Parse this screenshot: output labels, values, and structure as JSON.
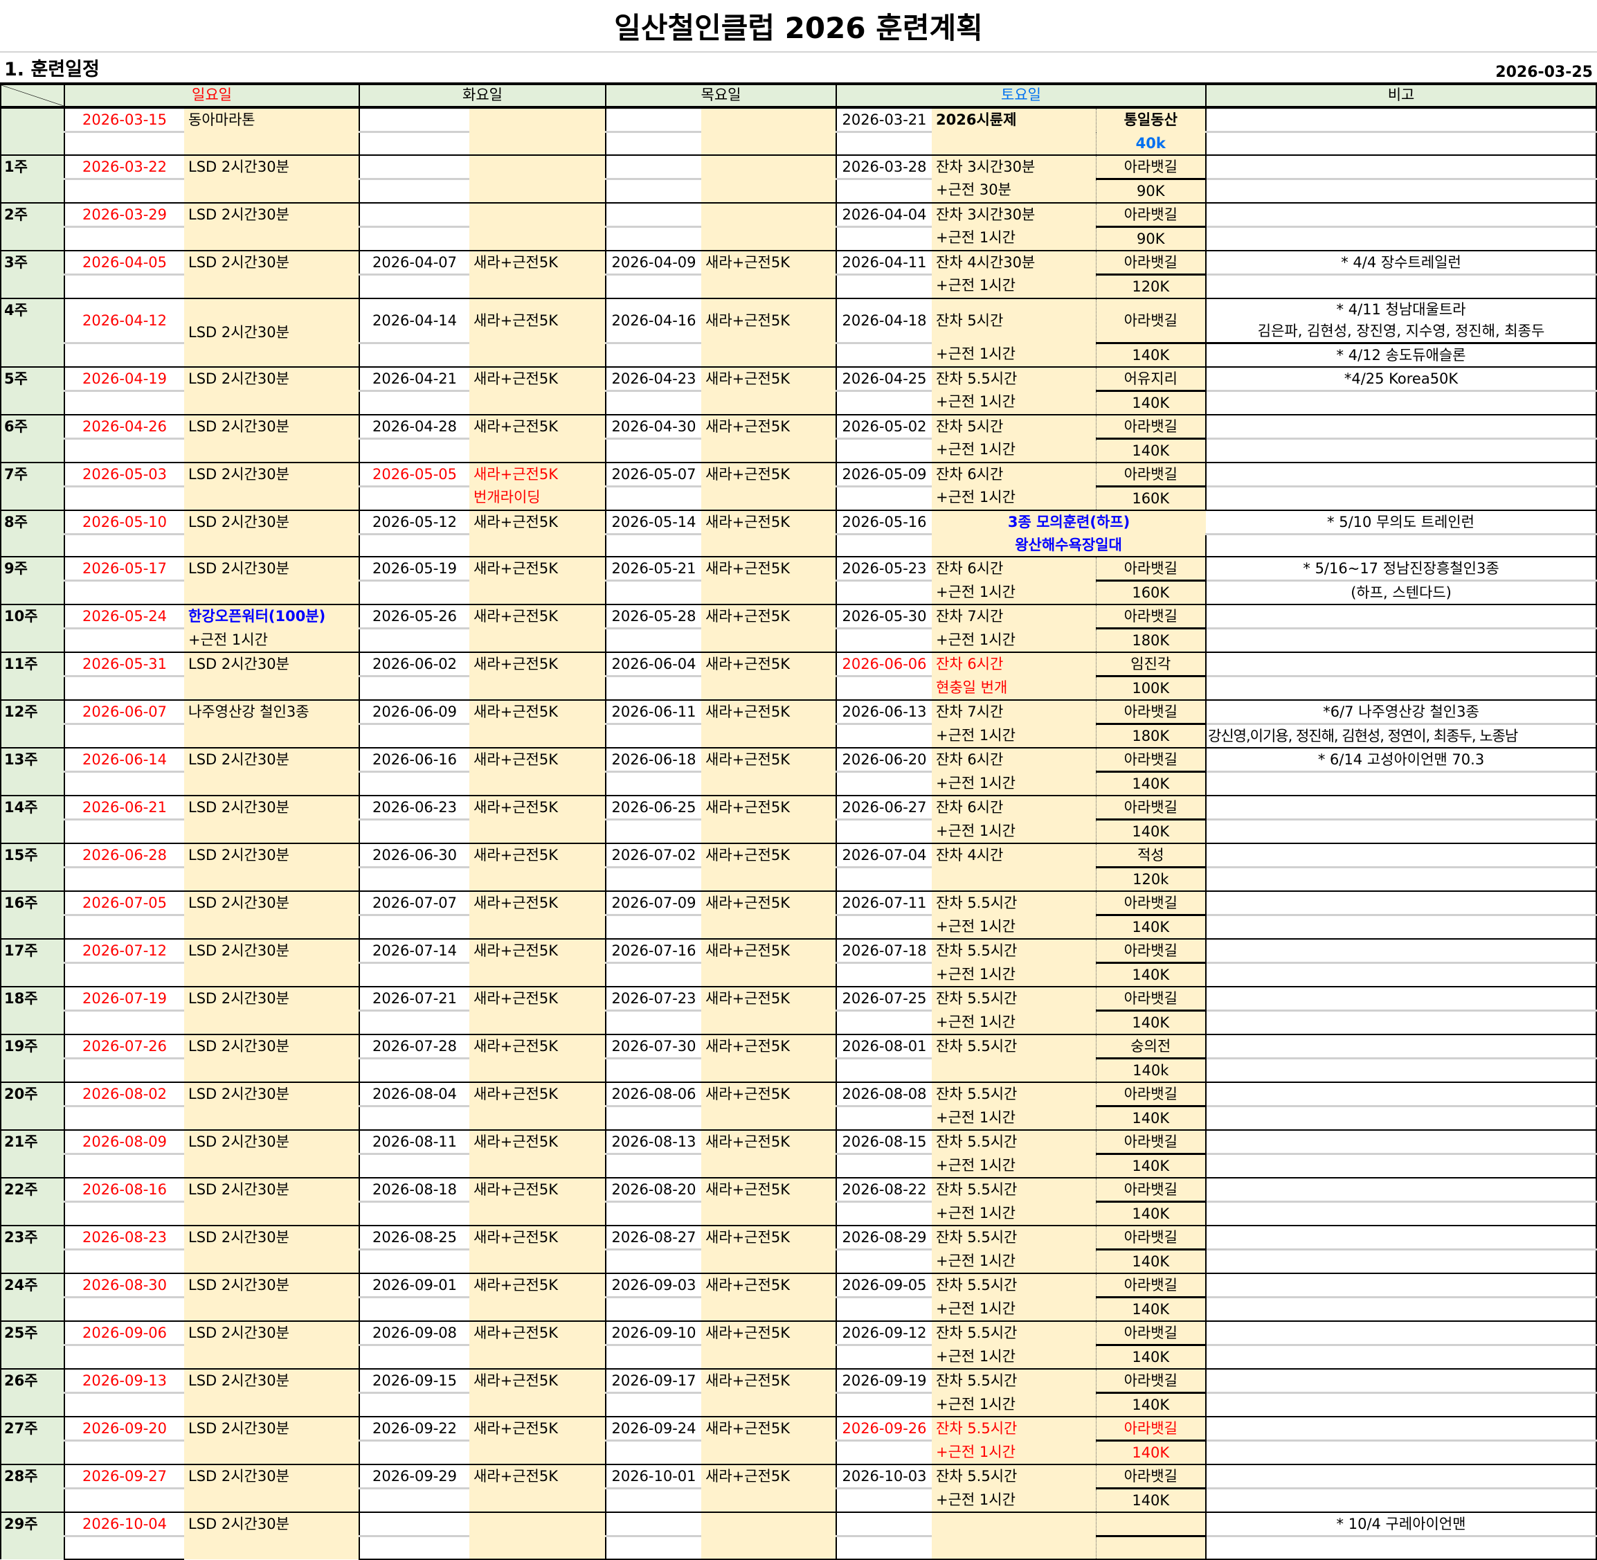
{
  "title": "일산철인클럽 2026 훈련계획",
  "section": "1. 훈련일정",
  "doc_date": "2026-03-25",
  "headers": {
    "sun": "일요일",
    "tue": "화요일",
    "thu": "목요일",
    "sat": "토요일",
    "remark": "비고"
  },
  "colors": {
    "sunday": "#FF0000",
    "saturday": "#0070F0",
    "highlight_blue": "#0000FF",
    "week_bg": "#E2EFDA",
    "activity_bg": "#FFF2CC"
  },
  "rows": [
    {
      "w": "",
      "sun": [
        "2026-03-15",
        "동아마라톤",
        ""
      ],
      "tue": [
        "",
        "",
        ""
      ],
      "thu": [
        "",
        "",
        ""
      ],
      "sat": [
        "2026-03-21",
        "2026시륜제",
        "",
        "통일동산",
        "40k"
      ],
      "rm": [
        "",
        ""
      ],
      "style": "first"
    },
    {
      "w": "1주",
      "sun": [
        "2026-03-22",
        "LSD 2시간30분",
        ""
      ],
      "tue": [
        "",
        "",
        ""
      ],
      "thu": [
        "",
        "",
        ""
      ],
      "sat": [
        "2026-03-28",
        "잔차 3시간30분",
        "+근전 30분",
        "아라뱃길",
        "90K"
      ],
      "rm": [
        "",
        ""
      ]
    },
    {
      "w": "2주",
      "sun": [
        "2026-03-29",
        "LSD 2시간30분",
        ""
      ],
      "tue": [
        "",
        "",
        ""
      ],
      "thu": [
        "",
        "",
        ""
      ],
      "sat": [
        "2026-04-04",
        "잔차 3시간30분",
        "+근전 1시간",
        "아라뱃길",
        "90K"
      ],
      "rm": [
        "",
        ""
      ]
    },
    {
      "w": "3주",
      "sun": [
        "2026-04-05",
        "LSD 2시간30분",
        ""
      ],
      "tue": [
        "2026-04-07",
        "새라+근전5K",
        ""
      ],
      "thu": [
        "2026-04-09",
        "새라+근전5K",
        ""
      ],
      "sat": [
        "2026-04-11",
        "잔차 4시간30분",
        "+근전 1시간",
        "아라뱃길",
        "120K"
      ],
      "rm": [
        "* 4/4 장수트레일런",
        ""
      ]
    },
    {
      "w": "4주",
      "sun": [
        "2026-04-12",
        "LSD 2시간30분",
        ""
      ],
      "tue": [
        "2026-04-14",
        "새라+근전5K",
        ""
      ],
      "thu": [
        "2026-04-16",
        "새라+근전5K",
        ""
      ],
      "sat": [
        "2026-04-18",
        "잔차 5시간",
        "+근전 1시간",
        "아라뱃길",
        "140K"
      ],
      "rm": [
        "* 4/11 청남대울트라",
        "* 4/12 송도듀애슬론"
      ],
      "rm2": "김은파, 김현성, 장진영, 지수영, 정진해, 최종두",
      "style": "tall"
    },
    {
      "w": "5주",
      "sun": [
        "2026-04-19",
        "LSD 2시간30분",
        ""
      ],
      "tue": [
        "2026-04-21",
        "새라+근전5K",
        ""
      ],
      "thu": [
        "2026-04-23",
        "새라+근전5K",
        ""
      ],
      "sat": [
        "2026-04-25",
        "잔차 5.5시간",
        "+근전 1시간",
        "어유지리",
        "140K"
      ],
      "rm": [
        "*4/25 Korea50K",
        ""
      ]
    },
    {
      "w": "6주",
      "sun": [
        "2026-04-26",
        "LSD 2시간30분",
        ""
      ],
      "tue": [
        "2026-04-28",
        "새라+근전5K",
        ""
      ],
      "thu": [
        "2026-04-30",
        "새라+근전5K",
        ""
      ],
      "sat": [
        "2026-05-02",
        "잔차 5시간",
        "+근전 1시간",
        "아라뱃길",
        "140K"
      ],
      "rm": [
        "",
        ""
      ]
    },
    {
      "w": "7주",
      "sun": [
        "2026-05-03",
        "LSD 2시간30분",
        ""
      ],
      "tue": [
        "2026-05-05",
        "새라+근전5K",
        "번개라이딩"
      ],
      "thu": [
        "2026-05-07",
        "새라+근전5K",
        ""
      ],
      "sat": [
        "2026-05-09",
        "잔차 6시간",
        "+근전 1시간",
        "아라뱃길",
        "160K"
      ],
      "rm": [
        "",
        ""
      ],
      "style": "tue_red"
    },
    {
      "w": "8주",
      "sun": [
        "2026-05-10",
        "LSD 2시간30분",
        ""
      ],
      "tue": [
        "2026-05-12",
        "새라+근전5K",
        ""
      ],
      "thu": [
        "2026-05-14",
        "새라+근전5K",
        ""
      ],
      "sat": [
        "2026-05-16",
        "3종 모의훈련(하프)",
        "왕산해수욕장일대",
        "",
        ""
      ],
      "rm": [
        "* 5/10 무의도 트레인런",
        ""
      ],
      "style": "sat_span_blue"
    },
    {
      "w": "9주",
      "sun": [
        "2026-05-17",
        "LSD 2시간30분",
        ""
      ],
      "tue": [
        "2026-05-19",
        "새라+근전5K",
        ""
      ],
      "thu": [
        "2026-05-21",
        "새라+근전5K",
        ""
      ],
      "sat": [
        "2026-05-23",
        "잔차 6시간",
        "+근전 1시간",
        "아라뱃길",
        "160K"
      ],
      "rm": [
        "* 5/16~17 정남진장흥철인3종",
        "(하프, 스텐다드)"
      ]
    },
    {
      "w": "10주",
      "sun": [
        "2026-05-24",
        "한강오픈워터(100분)",
        "+근전 1시간"
      ],
      "tue": [
        "2026-05-26",
        "새라+근전5K",
        ""
      ],
      "thu": [
        "2026-05-28",
        "새라+근전5K",
        ""
      ],
      "sat": [
        "2026-05-30",
        "잔차 7시간",
        "+근전 1시간",
        "아라뱃길",
        "180K"
      ],
      "rm": [
        "",
        ""
      ],
      "style": "sun_act_blue"
    },
    {
      "w": "11주",
      "sun": [
        "2026-05-31",
        "LSD 2시간30분",
        ""
      ],
      "tue": [
        "2026-06-02",
        "새라+근전5K",
        ""
      ],
      "thu": [
        "2026-06-04",
        "새라+근전5K",
        ""
      ],
      "sat": [
        "2026-06-06",
        "잔차 6시간",
        "현충일 번개",
        "임진각",
        "100K"
      ],
      "rm": [
        "",
        ""
      ],
      "style": "sat_red"
    },
    {
      "w": "12주",
      "sun": [
        "2026-06-07",
        "나주영산강 철인3종",
        ""
      ],
      "tue": [
        "2026-06-09",
        "새라+근전5K",
        ""
      ],
      "thu": [
        "2026-06-11",
        "새라+근전5K",
        ""
      ],
      "sat": [
        "2026-06-13",
        "잔차 7시간",
        "+근전 1시간",
        "아라뱃길",
        "180K"
      ],
      "rm": [
        "*6/7 나주영산강 철인3종",
        "강신영,이기용, 정진해, 김현성, 정연이, 최종두, 노종남"
      ]
    },
    {
      "w": "13주",
      "sun": [
        "2026-06-14",
        "LSD 2시간30분",
        ""
      ],
      "tue": [
        "2026-06-16",
        "새라+근전5K",
        ""
      ],
      "thu": [
        "2026-06-18",
        "새라+근전5K",
        ""
      ],
      "sat": [
        "2026-06-20",
        "잔차 6시간",
        "+근전 1시간",
        "아라뱃길",
        "140K"
      ],
      "rm": [
        "* 6/14 고성아이언맨 70.3",
        ""
      ]
    },
    {
      "w": "14주",
      "sun": [
        "2026-06-21",
        "LSD 2시간30분",
        ""
      ],
      "tue": [
        "2026-06-23",
        "새라+근전5K",
        ""
      ],
      "thu": [
        "2026-06-25",
        "새라+근전5K",
        ""
      ],
      "sat": [
        "2026-06-27",
        "잔차 6시간",
        "+근전 1시간",
        "아라뱃길",
        "140K"
      ],
      "rm": [
        "",
        ""
      ]
    },
    {
      "w": "15주",
      "sun": [
        "2026-06-28",
        "LSD 2시간30분",
        ""
      ],
      "tue": [
        "2026-06-30",
        "새라+근전5K",
        ""
      ],
      "thu": [
        "2026-07-02",
        "새라+근전5K",
        ""
      ],
      "sat": [
        "2026-07-04",
        "잔차 4시간",
        "",
        "적성",
        "120k"
      ],
      "rm": [
        "",
        ""
      ]
    },
    {
      "w": "16주",
      "sun": [
        "2026-07-05",
        "LSD 2시간30분",
        ""
      ],
      "tue": [
        "2026-07-07",
        "새라+근전5K",
        ""
      ],
      "thu": [
        "2026-07-09",
        "새라+근전5K",
        ""
      ],
      "sat": [
        "2026-07-11",
        "잔차 5.5시간",
        "+근전 1시간",
        "아라뱃길",
        "140K"
      ],
      "rm": [
        "",
        ""
      ]
    },
    {
      "w": "17주",
      "sun": [
        "2026-07-12",
        "LSD 2시간30분",
        ""
      ],
      "tue": [
        "2026-07-14",
        "새라+근전5K",
        ""
      ],
      "thu": [
        "2026-07-16",
        "새라+근전5K",
        ""
      ],
      "sat": [
        "2026-07-18",
        "잔차 5.5시간",
        "+근전 1시간",
        "아라뱃길",
        "140K"
      ],
      "rm": [
        "",
        ""
      ]
    },
    {
      "w": "18주",
      "sun": [
        "2026-07-19",
        "LSD 2시간30분",
        ""
      ],
      "tue": [
        "2026-07-21",
        "새라+근전5K",
        ""
      ],
      "thu": [
        "2026-07-23",
        "새라+근전5K",
        ""
      ],
      "sat": [
        "2026-07-25",
        "잔차 5.5시간",
        "+근전 1시간",
        "아라뱃길",
        "140K"
      ],
      "rm": [
        "",
        ""
      ]
    },
    {
      "w": "19주",
      "sun": [
        "2026-07-26",
        "LSD 2시간30분",
        ""
      ],
      "tue": [
        "2026-07-28",
        "새라+근전5K",
        ""
      ],
      "thu": [
        "2026-07-30",
        "새라+근전5K",
        ""
      ],
      "sat": [
        "2026-08-01",
        "잔차 5.5시간",
        "",
        "숭의전",
        "140k"
      ],
      "rm": [
        "",
        ""
      ]
    },
    {
      "w": "20주",
      "sun": [
        "2026-08-02",
        "LSD 2시간30분",
        ""
      ],
      "tue": [
        "2026-08-04",
        "새라+근전5K",
        ""
      ],
      "thu": [
        "2026-08-06",
        "새라+근전5K",
        ""
      ],
      "sat": [
        "2026-08-08",
        "잔차 5.5시간",
        "+근전 1시간",
        "아라뱃길",
        "140K"
      ],
      "rm": [
        "",
        ""
      ]
    },
    {
      "w": "21주",
      "sun": [
        "2026-08-09",
        "LSD 2시간30분",
        ""
      ],
      "tue": [
        "2026-08-11",
        "새라+근전5K",
        ""
      ],
      "thu": [
        "2026-08-13",
        "새라+근전5K",
        ""
      ],
      "sat": [
        "2026-08-15",
        "잔차 5.5시간",
        "+근전 1시간",
        "아라뱃길",
        "140K"
      ],
      "rm": [
        "",
        ""
      ]
    },
    {
      "w": "22주",
      "sun": [
        "2026-08-16",
        "LSD 2시간30분",
        ""
      ],
      "tue": [
        "2026-08-18",
        "새라+근전5K",
        ""
      ],
      "thu": [
        "2026-08-20",
        "새라+근전5K",
        ""
      ],
      "sat": [
        "2026-08-22",
        "잔차 5.5시간",
        "+근전 1시간",
        "아라뱃길",
        "140K"
      ],
      "rm": [
        "",
        ""
      ]
    },
    {
      "w": "23주",
      "sun": [
        "2026-08-23",
        "LSD 2시간30분",
        ""
      ],
      "tue": [
        "2026-08-25",
        "새라+근전5K",
        ""
      ],
      "thu": [
        "2026-08-27",
        "새라+근전5K",
        ""
      ],
      "sat": [
        "2026-08-29",
        "잔차 5.5시간",
        "+근전 1시간",
        "아라뱃길",
        "140K"
      ],
      "rm": [
        "",
        ""
      ]
    },
    {
      "w": "24주",
      "sun": [
        "2026-08-30",
        "LSD 2시간30분",
        ""
      ],
      "tue": [
        "2026-09-01",
        "새라+근전5K",
        ""
      ],
      "thu": [
        "2026-09-03",
        "새라+근전5K",
        ""
      ],
      "sat": [
        "2026-09-05",
        "잔차 5.5시간",
        "+근전 1시간",
        "아라뱃길",
        "140K"
      ],
      "rm": [
        "",
        ""
      ]
    },
    {
      "w": "25주",
      "sun": [
        "2026-09-06",
        "LSD 2시간30분",
        ""
      ],
      "tue": [
        "2026-09-08",
        "새라+근전5K",
        ""
      ],
      "thu": [
        "2026-09-10",
        "새라+근전5K",
        ""
      ],
      "sat": [
        "2026-09-12",
        "잔차 5.5시간",
        "+근전 1시간",
        "아라뱃길",
        "140K"
      ],
      "rm": [
        "",
        ""
      ]
    },
    {
      "w": "26주",
      "sun": [
        "2026-09-13",
        "LSD 2시간30분",
        ""
      ],
      "tue": [
        "2026-09-15",
        "새라+근전5K",
        ""
      ],
      "thu": [
        "2026-09-17",
        "새라+근전5K",
        ""
      ],
      "sat": [
        "2026-09-19",
        "잔차 5.5시간",
        "+근전 1시간",
        "아라뱃길",
        "140K"
      ],
      "rm": [
        "",
        ""
      ]
    },
    {
      "w": "27주",
      "sun": [
        "2026-09-20",
        "LSD 2시간30분",
        ""
      ],
      "tue": [
        "2026-09-22",
        "새라+근전5K",
        ""
      ],
      "thu": [
        "2026-09-24",
        "새라+근전5K",
        ""
      ],
      "sat": [
        "2026-09-26",
        "잔차 5.5시간",
        "+근전 1시간",
        "아라뱃길",
        "140K"
      ],
      "rm": [
        "",
        ""
      ],
      "style": "sat_all_red"
    },
    {
      "w": "28주",
      "sun": [
        "2026-09-27",
        "LSD 2시간30분",
        ""
      ],
      "tue": [
        "2026-09-29",
        "새라+근전5K",
        ""
      ],
      "thu": [
        "2026-10-01",
        "새라+근전5K",
        ""
      ],
      "sat": [
        "2026-10-03",
        "잔차 5.5시간",
        "+근전 1시간",
        "아라뱃길",
        "140K"
      ],
      "rm": [
        "",
        ""
      ]
    },
    {
      "w": "29주",
      "sun": [
        "2026-10-04",
        "LSD 2시간30분",
        ""
      ],
      "tue": [
        "",
        "",
        ""
      ],
      "thu": [
        "",
        "",
        ""
      ],
      "sat": [
        "",
        "",
        "",
        "",
        ""
      ],
      "rm": [
        "* 10/4 구레아이언맨",
        ""
      ]
    }
  ]
}
